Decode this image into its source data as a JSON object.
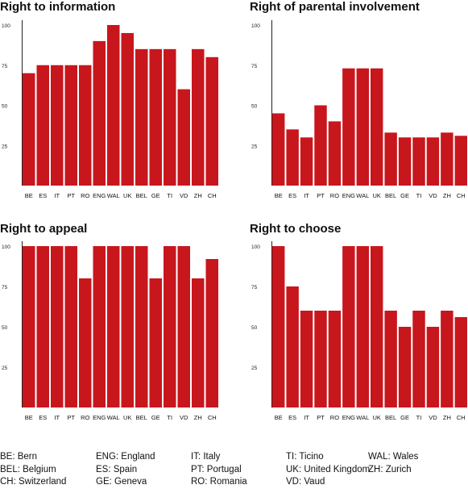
{
  "chart_data": [
    {
      "type": "bar",
      "title": "Right to information",
      "categories": [
        "BE",
        "ES",
        "IT",
        "PT",
        "RO",
        "ENG",
        "WAL",
        "UK",
        "BEL",
        "GE",
        "TI",
        "VD",
        "ZH",
        "CH"
      ],
      "values": [
        70,
        75,
        75,
        75,
        75,
        90,
        100,
        95,
        85,
        85,
        85,
        60,
        85,
        80
      ],
      "ylim": [
        0,
        100
      ],
      "yticks": [
        25,
        50,
        75,
        100
      ],
      "grid": false,
      "color": "#c8161d"
    },
    {
      "type": "bar",
      "title": "Right of parental involvement",
      "categories": [
        "BE",
        "ES",
        "IT",
        "PT",
        "RO",
        "ENG",
        "WAL",
        "UK",
        "BEL",
        "GE",
        "TI",
        "VD",
        "ZH",
        "CH"
      ],
      "values": [
        45,
        35,
        30,
        50,
        40,
        73,
        73,
        73,
        33,
        30,
        30,
        30,
        33,
        31
      ],
      "ylim": [
        0,
        100
      ],
      "yticks": [
        25,
        50,
        75,
        100
      ],
      "grid": false,
      "color": "#c8161d"
    },
    {
      "type": "bar",
      "title": "Right to appeal",
      "categories": [
        "BE",
        "ES",
        "IT",
        "PT",
        "RO",
        "ENG",
        "WAL",
        "UK",
        "BEL",
        "GE",
        "TI",
        "VD",
        "ZH",
        "CH"
      ],
      "values": [
        100,
        100,
        100,
        100,
        80,
        100,
        100,
        100,
        100,
        80,
        100,
        100,
        80,
        92
      ],
      "ylim": [
        0,
        100
      ],
      "yticks": [
        25,
        50,
        75,
        100
      ],
      "grid": false,
      "color": "#c8161d"
    },
    {
      "type": "bar",
      "title": "Right to choose",
      "categories": [
        "BE",
        "ES",
        "IT",
        "PT",
        "RO",
        "ENG",
        "WAL",
        "UK",
        "BEL",
        "GE",
        "TI",
        "VD",
        "ZH",
        "CH"
      ],
      "values": [
        100,
        75,
        60,
        60,
        60,
        100,
        100,
        100,
        60,
        50,
        60,
        50,
        60,
        56
      ],
      "ylim": [
        0,
        100
      ],
      "yticks": [
        25,
        50,
        75,
        100
      ],
      "grid": false,
      "color": "#c8161d"
    }
  ],
  "legend": {
    "columns": [
      [
        "BE: Bern",
        "BEL: Belgium",
        "CH: Switzerland"
      ],
      [
        "ENG: England",
        "ES: Spain",
        "GE: Geneva"
      ],
      [
        "IT: Italy",
        "PT: Portugal",
        "RO: Romania"
      ],
      [
        "TI: Ticino",
        "UK: United Kingdom",
        "VD: Vaud"
      ],
      [
        "WAL: Wales",
        "ZH: Zurich"
      ]
    ]
  }
}
